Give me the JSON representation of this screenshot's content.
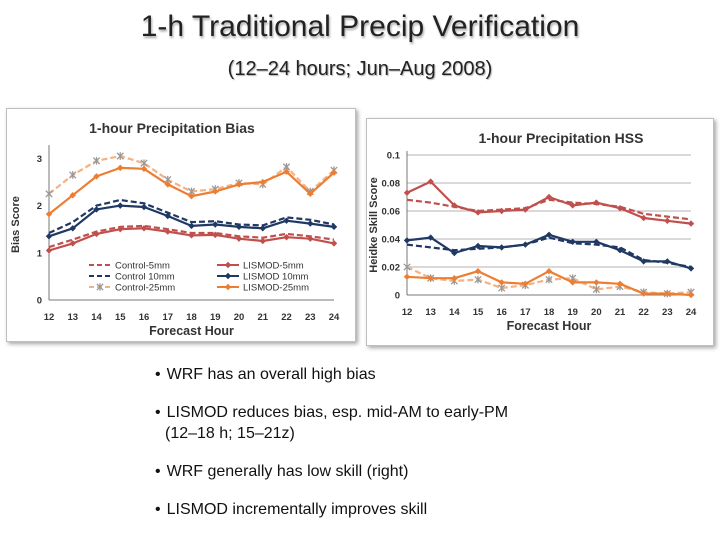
{
  "slide": {
    "title": "1-h Traditional Precip Verification",
    "subtitle": "(12–24 hours; Jun–Aug 2008)",
    "bullets": [
      {
        "text": "WRF has an overall high bias",
        "cont": ""
      },
      {
        "text": "LISMOD reduces bias, esp. mid-AM to early-PM",
        "cont": "(12–18 h; 15–21z)"
      },
      {
        "text": "WRF generally has low skill (right)",
        "cont": ""
      },
      {
        "text": "LISMOD incrementally improves skill",
        "cont": ""
      }
    ],
    "bullet_glyph": "•"
  },
  "chart_data": [
    {
      "type": "line",
      "title": "1-hour Precipitation Bias",
      "xlabel": "Forecast Hour",
      "ylabel": "Bias Score",
      "x": [
        12,
        13,
        14,
        15,
        16,
        17,
        18,
        19,
        20,
        21,
        22,
        23,
        24
      ],
      "xlim": [
        12,
        24
      ],
      "ylim": [
        0,
        3.2
      ],
      "yticks": [
        0,
        1,
        2,
        3
      ],
      "grid": false,
      "legend": "bottom",
      "series": [
        {
          "name": "Control-5mm",
          "color": "#c0504d",
          "style": "dashed",
          "marker": "none",
          "values": [
            1.12,
            1.28,
            1.45,
            1.55,
            1.57,
            1.5,
            1.42,
            1.42,
            1.35,
            1.32,
            1.4,
            1.35,
            1.28
          ]
        },
        {
          "name": "LISMOD-5mm",
          "color": "#c0504d",
          "style": "solid",
          "marker": "diamond",
          "values": [
            1.05,
            1.2,
            1.4,
            1.5,
            1.52,
            1.45,
            1.37,
            1.38,
            1.3,
            1.25,
            1.33,
            1.3,
            1.2
          ]
        },
        {
          "name": "Control 10mm",
          "color": "#1f3864",
          "style": "dashed",
          "marker": "none",
          "values": [
            1.42,
            1.65,
            2.0,
            2.12,
            2.05,
            1.85,
            1.65,
            1.67,
            1.6,
            1.58,
            1.75,
            1.7,
            1.6
          ]
        },
        {
          "name": "LISMOD 10mm",
          "color": "#1f3864",
          "style": "solid",
          "marker": "diamond",
          "values": [
            1.35,
            1.52,
            1.92,
            2.0,
            1.97,
            1.78,
            1.57,
            1.6,
            1.55,
            1.52,
            1.68,
            1.62,
            1.55
          ]
        },
        {
          "name": "Control-25mm",
          "color": "#f4b183",
          "style": "dashed",
          "marker": "star",
          "values": [
            2.25,
            2.65,
            2.95,
            3.05,
            2.9,
            2.55,
            2.3,
            2.35,
            2.48,
            2.45,
            2.82,
            2.3,
            2.75
          ]
        },
        {
          "name": "LISMOD-25mm",
          "color": "#ed7d31",
          "style": "solid",
          "marker": "diamond",
          "values": [
            1.82,
            2.22,
            2.62,
            2.8,
            2.78,
            2.45,
            2.2,
            2.3,
            2.45,
            2.5,
            2.72,
            2.25,
            2.7
          ]
        }
      ]
    },
    {
      "type": "line",
      "title": "1-hour Precipitation HSS",
      "xlabel": "Forecast Hour",
      "ylabel": "Heidke Skill Score",
      "x": [
        12,
        13,
        14,
        15,
        16,
        17,
        18,
        19,
        20,
        21,
        22,
        23,
        24
      ],
      "xlim": [
        12,
        24
      ],
      "ylim": [
        0,
        0.1
      ],
      "yticks": [
        0,
        0.02,
        0.04,
        0.06,
        0.08,
        0.1
      ],
      "grid": true,
      "legend": "none",
      "series": [
        {
          "name": "",
          "color": "#c0504d",
          "style": "dashed",
          "marker": "none",
          "values": [
            0.068,
            0.066,
            0.063,
            0.06,
            0.061,
            0.062,
            0.068,
            0.066,
            0.065,
            0.063,
            0.058,
            0.056,
            0.054
          ]
        },
        {
          "name": "",
          "color": "#c0504d",
          "style": "solid",
          "marker": "diamond",
          "values": [
            0.073,
            0.081,
            0.064,
            0.059,
            0.06,
            0.061,
            0.07,
            0.064,
            0.066,
            0.062,
            0.055,
            0.053,
            0.051
          ]
        },
        {
          "name": "",
          "color": "#1f3864",
          "style": "dashed",
          "marker": "none",
          "values": [
            0.036,
            0.034,
            0.032,
            0.033,
            0.034,
            0.036,
            0.041,
            0.037,
            0.036,
            0.034,
            0.025,
            0.023,
            0.02
          ]
        },
        {
          "name": "",
          "color": "#1f3864",
          "style": "solid",
          "marker": "diamond",
          "values": [
            0.039,
            0.041,
            0.03,
            0.035,
            0.034,
            0.036,
            0.043,
            0.038,
            0.038,
            0.032,
            0.024,
            0.024,
            0.019
          ]
        },
        {
          "name": "",
          "color": "#f4b183",
          "style": "dashed",
          "marker": "star",
          "values": [
            0.02,
            0.012,
            0.01,
            0.011,
            0.005,
            0.007,
            0.011,
            0.012,
            0.004,
            0.006,
            0.002,
            0.001,
            0.002
          ]
        },
        {
          "name": "",
          "color": "#ed7d31",
          "style": "solid",
          "marker": "diamond",
          "values": [
            0.013,
            0.012,
            0.012,
            0.017,
            0.009,
            0.008,
            0.017,
            0.009,
            0.009,
            0.008,
            0.001,
            0.001,
            0.0
          ]
        }
      ]
    }
  ]
}
